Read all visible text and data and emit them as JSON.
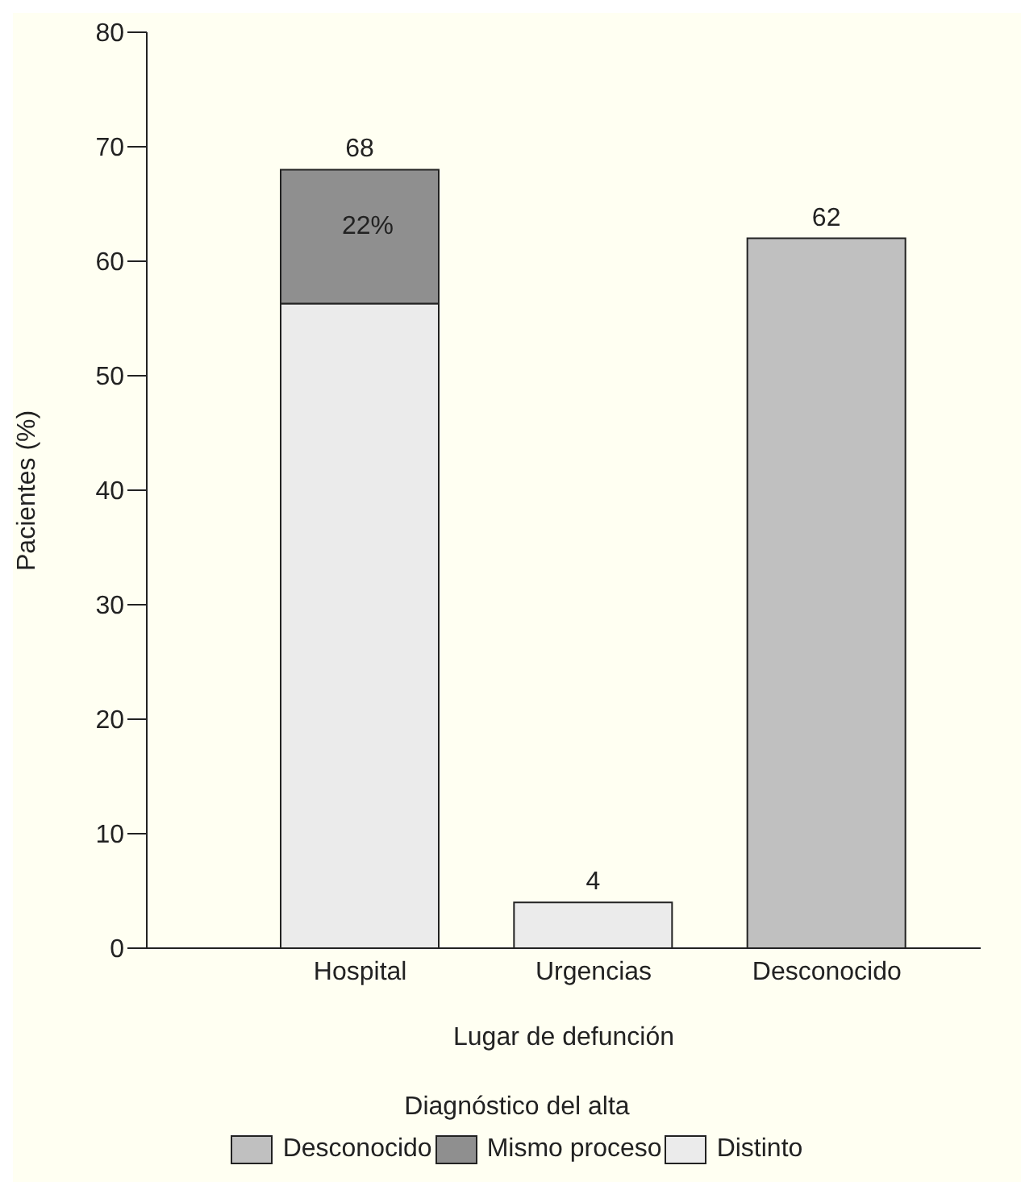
{
  "chart_data": {
    "type": "bar",
    "stacked": true,
    "xlabel": "Lugar de defunción",
    "ylabel": "Pacientes (%)",
    "legend_title": "Diagnóstico del alta",
    "legend": "bottom",
    "categories": [
      "Hospital",
      "Urgencias",
      "Desconocido"
    ],
    "series": [
      {
        "name": "Distinto",
        "color": "#ebebeb",
        "values": [
          56.3,
          4,
          null
        ]
      },
      {
        "name": "Mismo proceso",
        "color": "#8f8f8f",
        "values": [
          11.7,
          null,
          null
        ]
      },
      {
        "name": "Desconocido",
        "color": "#c0c0c0",
        "values": [
          null,
          null,
          62
        ]
      }
    ],
    "totals": [
      "68",
      "4",
      "62"
    ],
    "annotations": [
      "22%"
    ],
    "grid": false,
    "ylim": [
      0,
      80
    ],
    "yticks": [
      0,
      10,
      20,
      30,
      40,
      50,
      60,
      70,
      80
    ]
  }
}
